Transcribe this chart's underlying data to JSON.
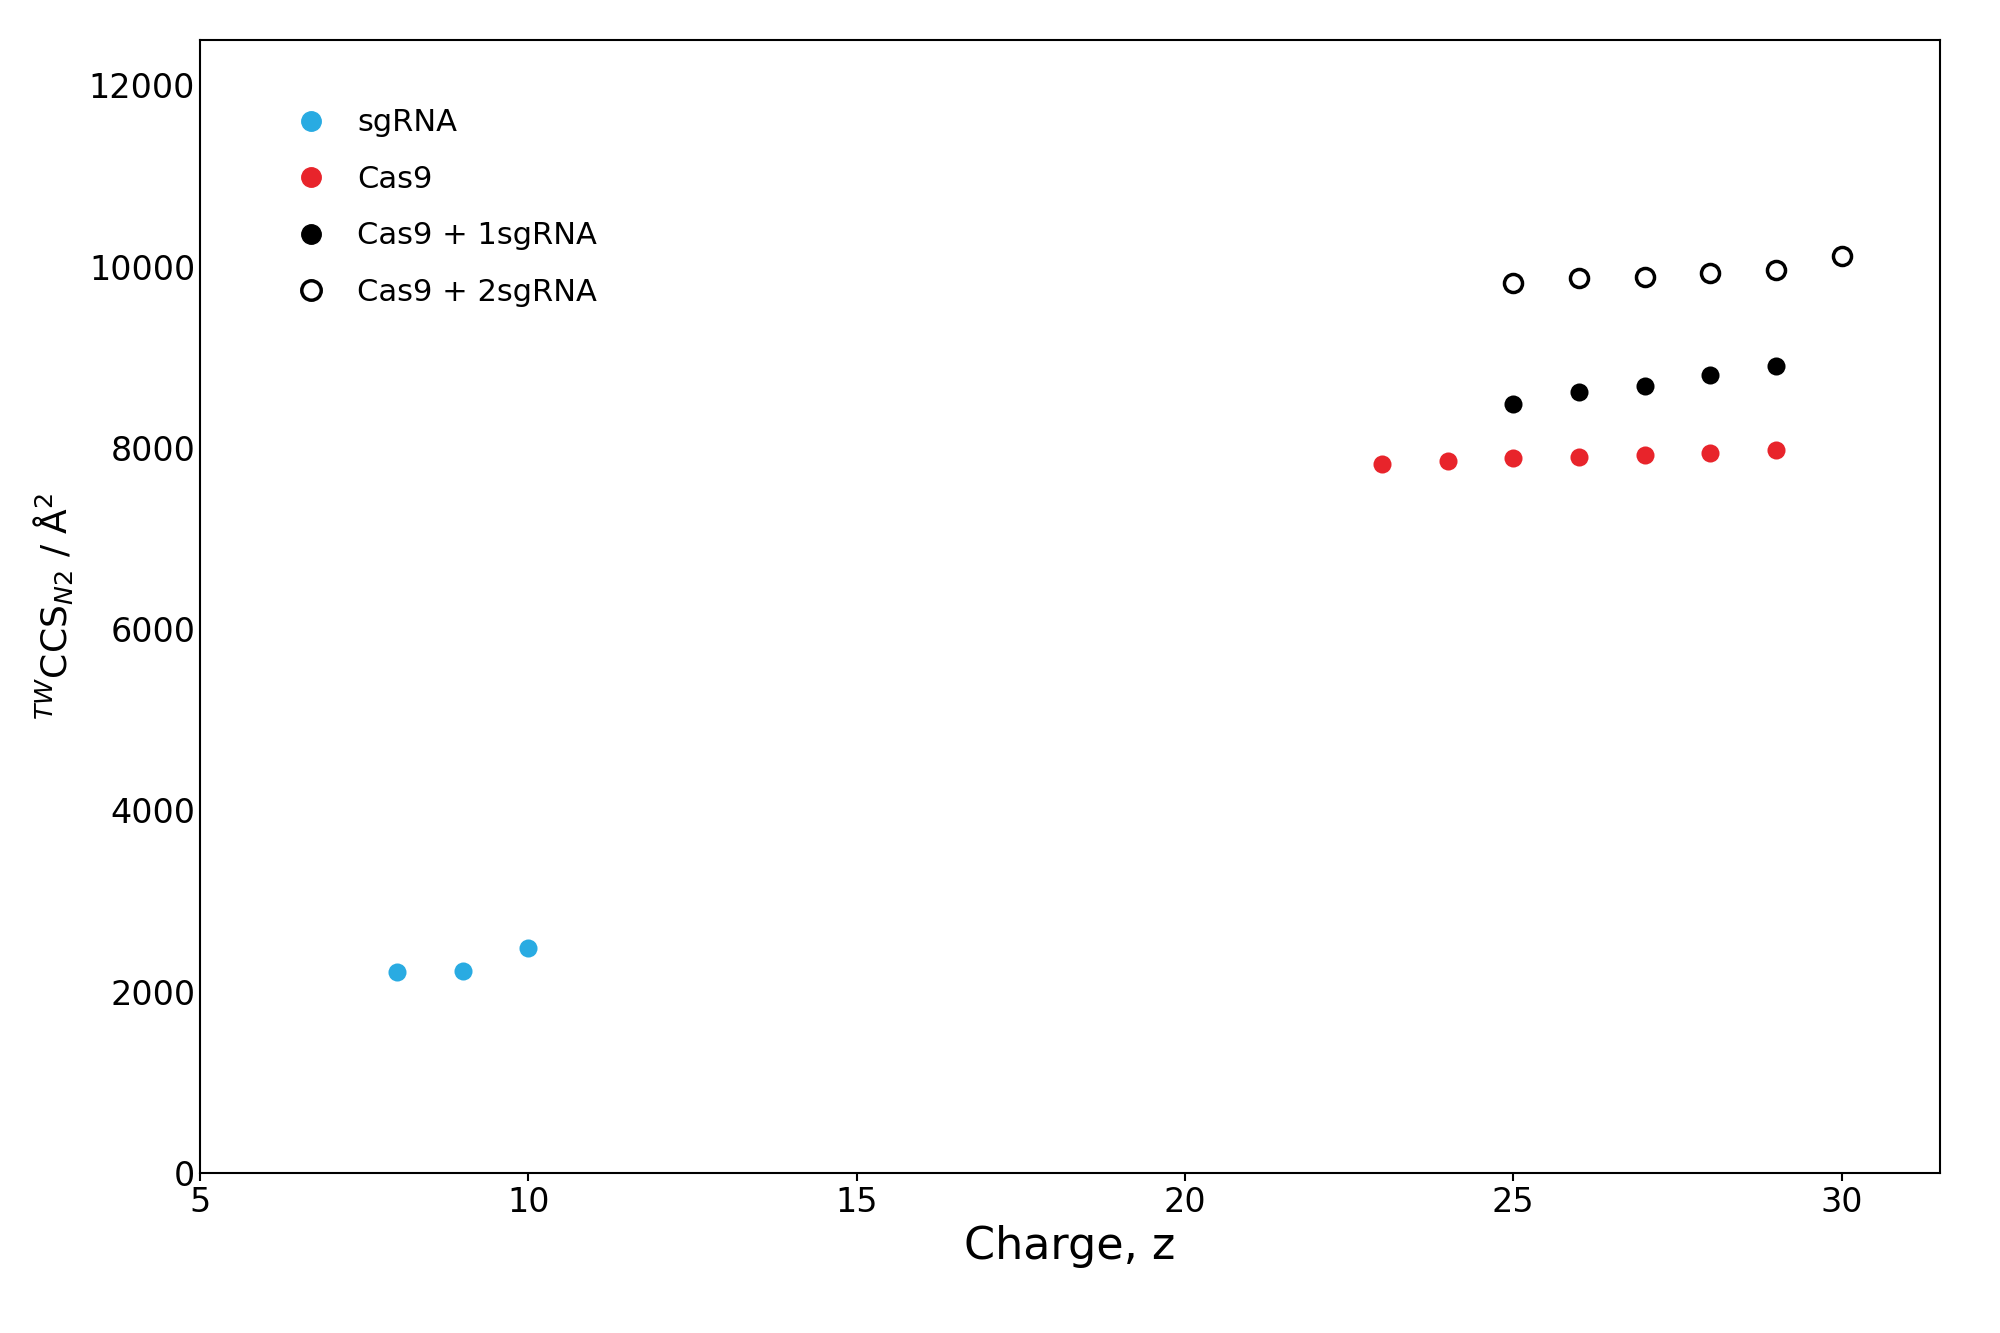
{
  "sgRNA": {
    "x": [
      8,
      9,
      10
    ],
    "y": [
      2220,
      2230,
      2480
    ],
    "color": "#29ABE2",
    "label": "sgRNA",
    "markersize": 13
  },
  "cas9": {
    "x": [
      23,
      24,
      25,
      26,
      27,
      28,
      29
    ],
    "y": [
      7820,
      7860,
      7890,
      7900,
      7920,
      7940,
      7980
    ],
    "color": "#E8242B",
    "label": "Cas9",
    "markersize": 13
  },
  "cas9_1sgrna": {
    "x": [
      25,
      26,
      27,
      28,
      29
    ],
    "y": [
      8480,
      8620,
      8680,
      8800,
      8900
    ],
    "color": "#000000",
    "label": "Cas9 + 1sgRNA",
    "markersize": 13
  },
  "cas9_2sgrna": {
    "x": [
      25,
      26,
      27,
      28,
      29,
      30
    ],
    "y": [
      9820,
      9870,
      9890,
      9930,
      9960,
      10120
    ],
    "color": "#000000",
    "label": "Cas9 + 2sgRNA",
    "markersize": 13
  },
  "xlabel": "Charge, z",
  "xlim": [
    5,
    31.5
  ],
  "ylim": [
    0,
    12500
  ],
  "xticks": [
    5,
    10,
    15,
    20,
    25,
    30
  ],
  "yticks": [
    0,
    2000,
    4000,
    6000,
    8000,
    10000,
    12000
  ],
  "xlabel_fontsize": 32,
  "ylabel_fontsize": 26,
  "tick_fontsize": 24,
  "legend_fontsize": 22,
  "background_color": "#ffffff"
}
